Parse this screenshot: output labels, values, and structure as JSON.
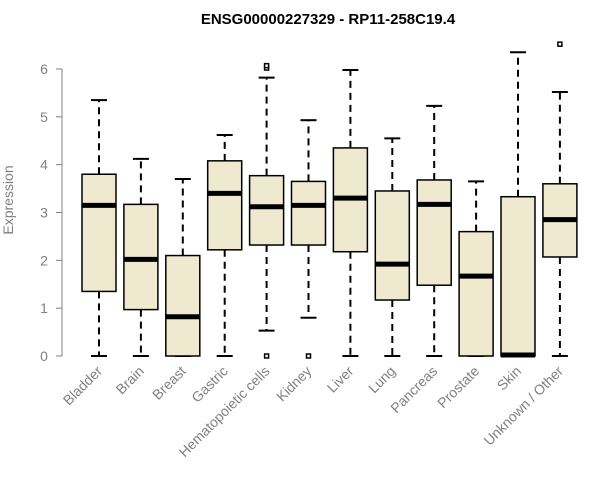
{
  "chart_data": {
    "type": "box",
    "title": "ENSG00000227329 - RP11-258C19.4",
    "xlabel": "",
    "ylabel": "Expression",
    "ylim": [
      0,
      6.5
    ],
    "yticks": [
      0,
      1,
      2,
      3,
      4,
      5,
      6
    ],
    "box_fill": "#efe9d0",
    "categories": [
      "Bladder",
      "Brain",
      "Breast",
      "Gastric",
      "Hematopoietic cells",
      "Kidney",
      "Liver",
      "Lung",
      "Pancreas",
      "Prostate",
      "Skin",
      "Unknown / Other"
    ],
    "boxes": [
      {
        "min": 0,
        "q1": 1.35,
        "median": 3.15,
        "q3": 3.8,
        "max": 5.35,
        "outliers": []
      },
      {
        "min": 0,
        "q1": 0.97,
        "median": 2.02,
        "q3": 3.17,
        "max": 4.12,
        "outliers": []
      },
      {
        "min": 0,
        "q1": 0,
        "median": 0.82,
        "q3": 2.1,
        "max": 3.7,
        "outliers": []
      },
      {
        "min": 0,
        "q1": 2.22,
        "median": 3.4,
        "q3": 4.08,
        "max": 4.62,
        "outliers": []
      },
      {
        "min": 0.53,
        "q1": 2.32,
        "median": 3.12,
        "q3": 3.77,
        "max": 5.82,
        "outliers": [
          0,
          6.02,
          6.07
        ]
      },
      {
        "min": 0.8,
        "q1": 2.32,
        "median": 3.15,
        "q3": 3.65,
        "max": 4.93,
        "outliers": [
          0
        ]
      },
      {
        "min": 0,
        "q1": 2.18,
        "median": 3.3,
        "q3": 4.35,
        "max": 5.98,
        "outliers": []
      },
      {
        "min": 0,
        "q1": 1.17,
        "median": 1.92,
        "q3": 3.45,
        "max": 4.55,
        "outliers": []
      },
      {
        "min": 0,
        "q1": 1.48,
        "median": 3.17,
        "q3": 3.68,
        "max": 5.23,
        "outliers": []
      },
      {
        "min": 0,
        "q1": 0,
        "median": 1.67,
        "q3": 2.6,
        "max": 3.65,
        "outliers": []
      },
      {
        "min": 0,
        "q1": 0,
        "median": 0.02,
        "q3": 3.33,
        "max": 6.35,
        "outliers": []
      },
      {
        "min": 0,
        "q1": 2.07,
        "median": 2.85,
        "q3": 3.6,
        "max": 5.52,
        "outliers": [
          6.52
        ]
      }
    ]
  }
}
